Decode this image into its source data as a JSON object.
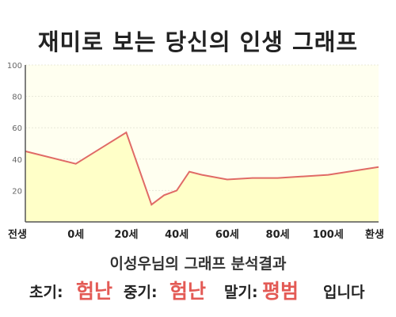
{
  "title": "재미로 보는 당신의 인생 그래프",
  "chart_data": {
    "type": "area",
    "x_tick_labels": [
      "전생",
      "0세",
      "20세",
      "40세",
      "60세",
      "80세",
      "100세",
      "환생"
    ],
    "x": [
      -20,
      0,
      20,
      30,
      35,
      40,
      45,
      50,
      60,
      70,
      80,
      100,
      120
    ],
    "values": [
      45,
      37,
      57,
      11,
      17,
      20,
      32,
      30,
      27,
      28,
      28,
      30,
      35
    ],
    "ylim": [
      0,
      100
    ],
    "y_ticks": [
      20,
      40,
      60,
      80,
      100
    ],
    "grid": true,
    "line_color": "#e06a66",
    "fill_color": "#ffffc8",
    "background_color": "#fffff0"
  },
  "summary": {
    "text": "이성우님의 그래프 분석결과"
  },
  "verdict": {
    "early_label": "초기:",
    "early_value": "험난",
    "mid_label": "중기:",
    "mid_value": "험난",
    "late_label": "말기:",
    "late_value": "평범",
    "suffix": "입니다",
    "accent_color": "#e35a55"
  }
}
